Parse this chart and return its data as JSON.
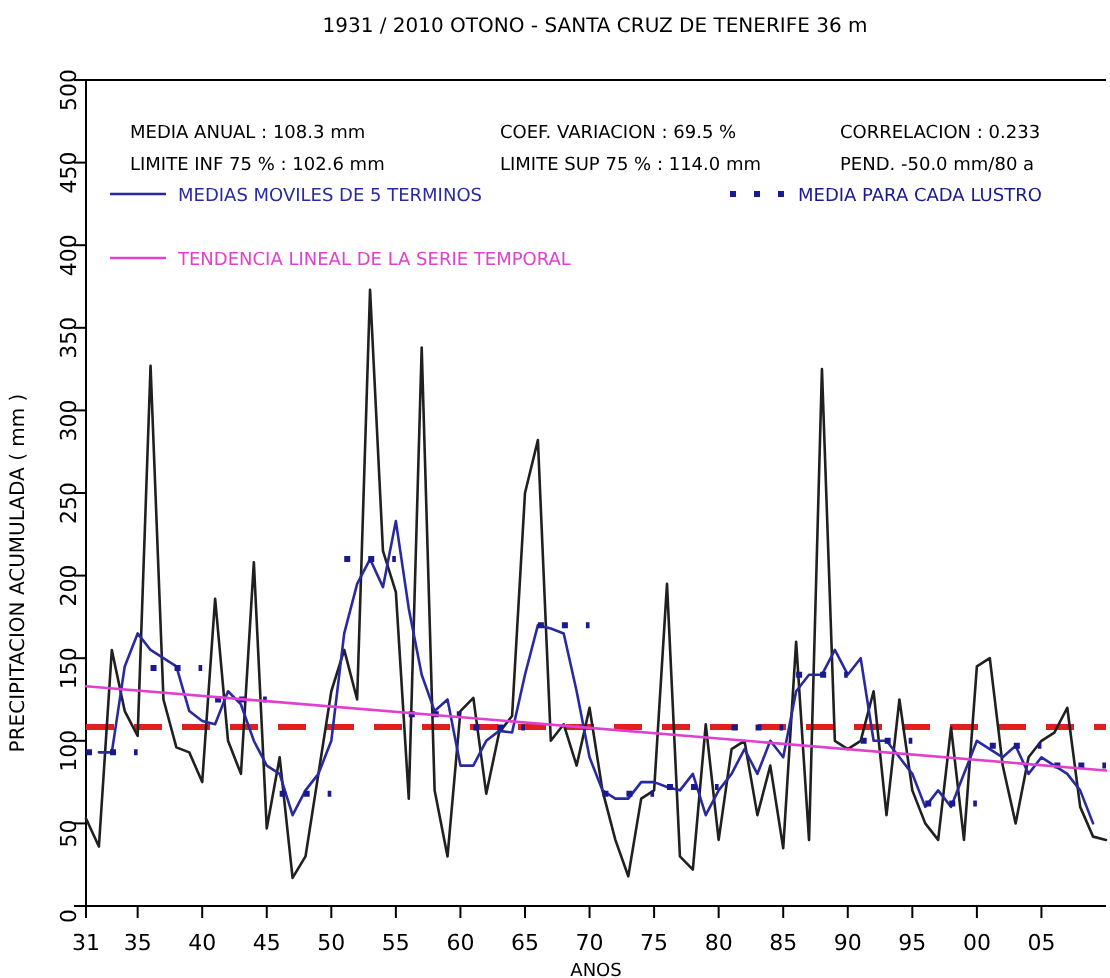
{
  "chart_data": {
    "type": "line",
    "title": "1931 / 2010    OTONO  - SANTA CRUZ DE TENERIFE  36 m",
    "xlabel": "ANOS",
    "ylabel": "PRECIPITACION ACUMULADA ( mm )",
    "xlim": [
      1931,
      2010
    ],
    "xticks": [
      {
        "value": 1931,
        "label": "31"
      },
      {
        "value": 1935,
        "label": "35"
      },
      {
        "value": 1940,
        "label": "40"
      },
      {
        "value": 1945,
        "label": "45"
      },
      {
        "value": 1950,
        "label": "50"
      },
      {
        "value": 1955,
        "label": "55"
      },
      {
        "value": 1960,
        "label": "60"
      },
      {
        "value": 1965,
        "label": "65"
      },
      {
        "value": 1970,
        "label": "70"
      },
      {
        "value": 1975,
        "label": "75"
      },
      {
        "value": 1980,
        "label": "80"
      },
      {
        "value": 1985,
        "label": "85"
      },
      {
        "value": 1990,
        "label": "90"
      },
      {
        "value": 1995,
        "label": "95"
      },
      {
        "value": 2000,
        "label": "00"
      },
      {
        "value": 2005,
        "label": "05"
      }
    ],
    "ylim": [
      0,
      500
    ],
    "yticks": [
      0,
      50,
      100,
      150,
      200,
      250,
      300,
      350,
      400,
      450,
      500
    ],
    "grid": false,
    "legend": "top left",
    "marker": "none",
    "annotations": [
      "MEDIA ANUAL    :  108.3 mm",
      "COEF. VARIACION :   69.5 %",
      "CORRELACION : 0.233",
      "LIMITE INF 75 % :  102.6 mm",
      "LIMITE SUP 75 % :  114.0 mm",
      "PEND.  -50.0 mm/80 a"
    ],
    "ref_lines": [
      {
        "axis": "y",
        "value": 108.3,
        "color": "#e02020",
        "line_style": "dashed"
      }
    ],
    "series": [
      {
        "color": "#202020",
        "line_style": "solid",
        "x": [
          1931,
          1932,
          1933,
          1934,
          1935,
          1936,
          1937,
          1938,
          1939,
          1940,
          1941,
          1942,
          1943,
          1944,
          1945,
          1946,
          1947,
          1948,
          1949,
          1950,
          1951,
          1952,
          1953,
          1954,
          1955,
          1956,
          1957,
          1958,
          1959,
          1960,
          1961,
          1962,
          1963,
          1964,
          1965,
          1966,
          1967,
          1968,
          1969,
          1970,
          1971,
          1972,
          1973,
          1974,
          1975,
          1976,
          1977,
          1978,
          1979,
          1980,
          1981,
          1982,
          1983,
          1984,
          1985,
          1986,
          1987,
          1988,
          1989,
          1990,
          1991,
          1992,
          1993,
          1994,
          1995,
          1996,
          1997,
          1998,
          1999,
          2000,
          2001,
          2002,
          2003,
          2004,
          2005,
          2006,
          2007,
          2008,
          2009,
          2010
        ],
        "values": [
          53,
          36,
          155,
          118,
          103,
          327,
          125,
          96,
          93,
          75,
          186,
          100,
          80,
          208,
          47,
          90,
          17,
          30,
          80,
          130,
          155,
          125,
          373,
          215,
          190,
          65,
          338,
          70,
          30,
          118,
          126,
          68,
          105,
          115,
          250,
          282,
          100,
          110,
          85,
          120,
          70,
          40,
          18,
          65,
          70,
          195,
          30,
          22,
          110,
          40,
          95,
          100,
          55,
          85,
          35,
          160,
          40,
          325,
          100,
          95,
          100,
          130,
          55,
          125,
          70,
          50,
          40,
          108,
          40,
          145,
          150,
          85,
          50,
          90,
          100,
          105,
          120,
          60,
          42,
          40
        ]
      },
      {
        "name": "MEDIAS MOVILES DE 5 TERMINOS",
        "color": "#2a2aa0",
        "line_style": "solid",
        "x": [
          1932,
          1933,
          1934,
          1935,
          1936,
          1937,
          1938,
          1939,
          1940,
          1941,
          1942,
          1943,
          1944,
          1945,
          1946,
          1947,
          1948,
          1949,
          1950,
          1951,
          1952,
          1953,
          1954,
          1955,
          1956,
          1957,
          1958,
          1959,
          1960,
          1961,
          1962,
          1963,
          1964,
          1965,
          1966,
          1967,
          1968,
          1969,
          1970,
          1971,
          1972,
          1973,
          1974,
          1975,
          1976,
          1977,
          1978,
          1979,
          1980,
          1981,
          1982,
          1983,
          1984,
          1985,
          1986,
          1987,
          1988,
          1989,
          1990,
          1991,
          1992,
          1993,
          1994,
          1995,
          1996,
          1997,
          1998,
          1999,
          2000,
          2001,
          2002,
          2003,
          2004,
          2005,
          2006,
          2007,
          2008,
          2009
        ],
        "values": [
          93,
          93,
          145,
          165,
          155,
          150,
          145,
          118,
          112,
          110,
          130,
          122,
          100,
          85,
          80,
          55,
          70,
          80,
          100,
          165,
          195,
          210,
          193,
          233,
          180,
          140,
          118,
          125,
          85,
          85,
          100,
          106,
          105,
          140,
          170,
          168,
          165,
          130,
          90,
          70,
          65,
          65,
          75,
          75,
          72,
          70,
          80,
          55,
          70,
          80,
          95,
          80,
          100,
          90,
          130,
          140,
          140,
          155,
          140,
          150,
          100,
          100,
          90,
          80,
          60,
          70,
          60,
          80,
          100,
          95,
          90,
          97,
          80,
          90,
          85,
          80,
          70,
          50
        ]
      },
      {
        "name": "MEDIA PARA CADA LUSTRO",
        "color": "#1a1a90",
        "line_style": "dotted",
        "x": [
          1931,
          1935,
          1935.5,
          1936,
          1940,
          1940.5,
          1941,
          1945,
          1945.5,
          1946,
          1950,
          1950.5,
          1951,
          1955,
          1955.5,
          1956,
          1960,
          1960.5,
          1961,
          1965,
          1965.5,
          1966,
          1970,
          1970.5,
          1971,
          1975,
          1975.5,
          1976,
          1980,
          1980.5,
          1981,
          1985,
          1985.5,
          1986,
          1990,
          1990.5,
          1991,
          1995,
          1995.5,
          1996,
          2000,
          2000.5,
          2001,
          2005,
          2005.5,
          2006,
          2010
        ],
        "values": [
          93,
          93,
          null,
          144,
          144,
          null,
          125,
          125,
          null,
          68,
          68,
          null,
          210,
          210,
          null,
          116,
          116,
          null,
          108,
          108,
          null,
          170,
          170,
          null,
          68,
          68,
          null,
          72,
          72,
          null,
          108,
          108,
          null,
          140,
          140,
          null,
          100,
          100,
          null,
          62,
          62,
          null,
          97,
          97,
          null,
          85,
          85
        ]
      },
      {
        "name": "TENDENCIA LINEAL DE LA SERIE TEMPORAL",
        "color": "#e040d0",
        "line_style": "solid",
        "x": [
          1931,
          2010
        ],
        "values": [
          133,
          82
        ]
      }
    ]
  }
}
